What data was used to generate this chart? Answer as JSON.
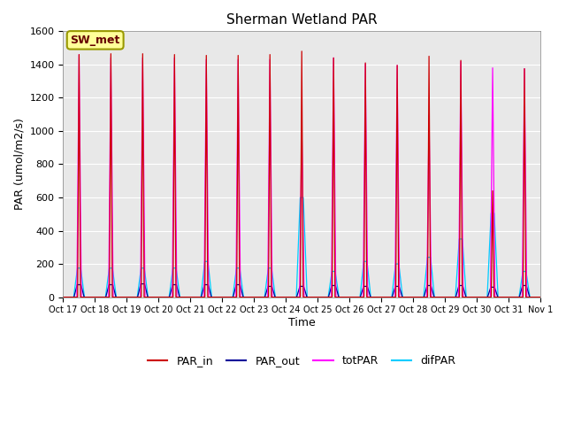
{
  "title": "Sherman Wetland PAR",
  "ylabel": "PAR (umol/m2/s)",
  "xlabel": "Time",
  "annotation": "SW_met",
  "ylim": [
    0,
    1600
  ],
  "yticks": [
    0,
    200,
    400,
    600,
    800,
    1000,
    1200,
    1400,
    1600
  ],
  "xtick_labels": [
    "Oct 17",
    "Oct 18",
    "Oct 19",
    "Oct 20",
    "Oct 21",
    "Oct 22",
    "Oct 23",
    "Oct 24",
    "Oct 25",
    "Oct 26",
    "Oct 27",
    "Oct 28",
    "Oct 29",
    "Oct 30",
    "Oct 31",
    "Nov 1"
  ],
  "num_days": 15,
  "colors": {
    "PAR_in": "#cc0000",
    "PAR_out": "#000099",
    "totPAR": "#ff00ff",
    "difPAR": "#00ccff"
  },
  "bg_color": "#e8e8e8",
  "grid_color": "white",
  "par_in_peaks": [
    1460,
    1465,
    1465,
    1460,
    1455,
    1455,
    1460,
    1480,
    1440,
    1410,
    1395,
    1450,
    1425,
    640,
    1375
  ],
  "tot_par_peaks": [
    1460,
    1440,
    1440,
    1440,
    1430,
    1430,
    1430,
    1020,
    1440,
    1405,
    1395,
    1095,
    1418,
    1380,
    1375
  ],
  "dif_par_peaks": [
    175,
    175,
    175,
    175,
    215,
    175,
    175,
    600,
    155,
    215,
    200,
    240,
    350,
    505,
    155
  ],
  "par_out_peaks": [
    75,
    75,
    80,
    75,
    75,
    75,
    65,
    65,
    70,
    65,
    65,
    70,
    70,
    60,
    70
  ]
}
